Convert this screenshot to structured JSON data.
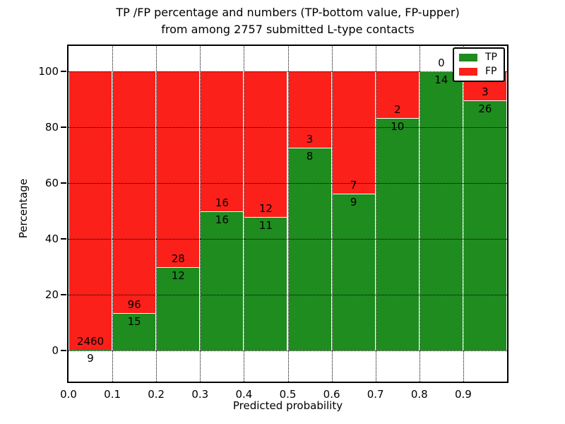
{
  "title": {
    "line1": "TP /FP percentage and numbers (TP-bottom value, FP-upper)",
    "line2": "from among 2757 submitted L-type contacts"
  },
  "axes": {
    "xlabel": "Predicted probability",
    "ylabel": "Percentage",
    "ytick_labels": [
      "0",
      "20",
      "40",
      "60",
      "80",
      "100"
    ],
    "xtick_labels": [
      "0.0",
      "0.1",
      "0.2",
      "0.3",
      "0.4",
      "0.5",
      "0.6",
      "0.7",
      "0.8",
      "0.9"
    ]
  },
  "legend": {
    "items": [
      {
        "label": "TP",
        "color": "#1e8c1e"
      },
      {
        "label": "FP",
        "color": "#fb201a"
      }
    ]
  },
  "chart_data": {
    "type": "bar",
    "stacked": true,
    "normalized": "each bin stacks to 100%",
    "title": "TP /FP percentage and numbers (TP-bottom value, FP-upper) from among 2757 submitted L-type contacts",
    "xlabel": "Predicted probability",
    "ylabel": "Percentage",
    "xlim": [
      0.0,
      1.0
    ],
    "ylim": [
      -11,
      109
    ],
    "grid": true,
    "legend_position": "upper right",
    "total_contacts": 2757,
    "bins": [
      {
        "range": "0.0-0.1",
        "tp": 9,
        "fp": 2460,
        "tp_pct": 0.4
      },
      {
        "range": "0.1-0.2",
        "tp": 15,
        "fp": 96,
        "tp_pct": 13.5
      },
      {
        "range": "0.2-0.3",
        "tp": 12,
        "fp": 28,
        "tp_pct": 30.0
      },
      {
        "range": "0.3-0.4",
        "tp": 16,
        "fp": 16,
        "tp_pct": 50.0
      },
      {
        "range": "0.4-0.5",
        "tp": 11,
        "fp": 12,
        "tp_pct": 47.8
      },
      {
        "range": "0.5-0.6",
        "tp": 8,
        "fp": 3,
        "tp_pct": 72.7
      },
      {
        "range": "0.6-0.7",
        "tp": 9,
        "fp": 7,
        "tp_pct": 56.2
      },
      {
        "range": "0.7-0.8",
        "tp": 10,
        "fp": 2,
        "tp_pct": 83.3
      },
      {
        "range": "0.8-0.9",
        "tp": 14,
        "fp": 0,
        "tp_pct": 100.0
      },
      {
        "range": "0.9-1.0",
        "tp": 26,
        "fp": 3,
        "tp_pct": 89.7
      }
    ],
    "series": [
      {
        "name": "TP",
        "color": "#1e8c1e",
        "values": [
          9,
          15,
          12,
          16,
          11,
          8,
          9,
          10,
          14,
          26
        ]
      },
      {
        "name": "FP",
        "color": "#fb201a",
        "values": [
          2460,
          96,
          28,
          16,
          12,
          3,
          7,
          2,
          0,
          3
        ]
      }
    ]
  }
}
